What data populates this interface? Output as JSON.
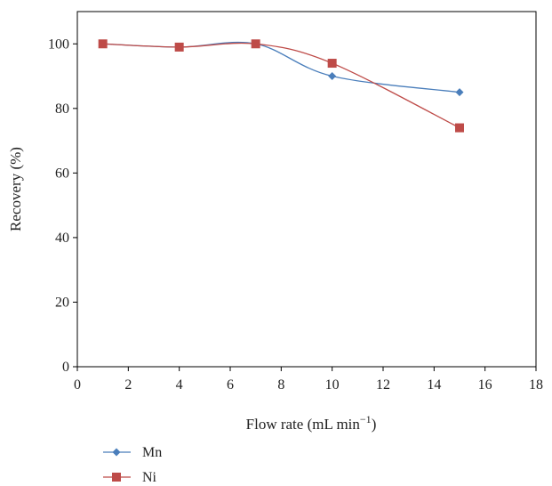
{
  "chart_data": {
    "type": "line",
    "title": "",
    "xlabel": "Flow rate (mL min",
    "xlabel_superscript": "−1",
    "xlabel_suffix": ")",
    "ylabel": "Recovery (%)",
    "xlim": [
      0,
      18
    ],
    "ylim": [
      0,
      110
    ],
    "xticks": [
      0,
      2,
      4,
      6,
      8,
      10,
      12,
      14,
      16,
      18
    ],
    "yticks": [
      0,
      20,
      40,
      60,
      80,
      100
    ],
    "grid": false,
    "smooth": true,
    "legend_position": "bottom-left, below plot",
    "series": [
      {
        "name": "Mn",
        "color": "#4a7ebb",
        "marker": "diamond",
        "x": [
          1,
          4,
          7,
          10,
          15
        ],
        "y": [
          100,
          99,
          100,
          90,
          85
        ]
      },
      {
        "name": "Ni",
        "color": "#be4b48",
        "marker": "square",
        "x": [
          1,
          4,
          7,
          10,
          15
        ],
        "y": [
          100,
          99,
          100,
          94,
          74
        ]
      }
    ]
  }
}
